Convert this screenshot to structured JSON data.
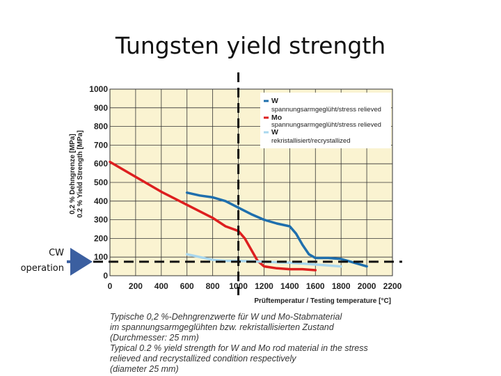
{
  "slide_title": "Tungsten yield strength",
  "annotation": {
    "line1": "CW",
    "line2": "operation"
  },
  "colors": {
    "w_stress_relieved": "#1f6fad",
    "mo_stress_relieved": "#dd1f1f",
    "w_recrystallized": "#a9d7ee",
    "plot_bg": "#faf3d1",
    "grid": "#333333"
  },
  "chart_data": {
    "type": "line",
    "title": "Tungsten yield strength",
    "xlabel": "Prüftemperatur / Testing temperature [°C]",
    "ylabel_de": "0,2 % Dehngrenze [MPa]",
    "ylabel_en": "0.2 % Yield Strength [MPa]",
    "xlim": [
      0,
      2200
    ],
    "ylim": [
      0,
      1000
    ],
    "x_ticks": [
      0,
      200,
      400,
      600,
      800,
      1000,
      1200,
      1400,
      1600,
      1800,
      2000,
      2200
    ],
    "y_ticks": [
      0,
      100,
      200,
      300,
      400,
      500,
      600,
      700,
      800,
      900,
      1000
    ],
    "grid": true,
    "legend_position": "top-right",
    "legend": [
      {
        "name": "W",
        "desc": "spannungsarmgeglüht/stress relieved"
      },
      {
        "name": "Mo",
        "desc": "spannungsarmgeglüht/stress relieved"
      },
      {
        "name": "W",
        "desc": "rekristallisiert/recrystallized"
      }
    ],
    "series": [
      {
        "name": "W spannungsarmgeglüht/stress relieved",
        "x": [
          600,
          700,
          800,
          900,
          1000,
          1100,
          1200,
          1300,
          1400,
          1450,
          1500,
          1550,
          1600,
          1700,
          1800,
          1900,
          2000
        ],
        "y": [
          445,
          430,
          420,
          400,
          365,
          330,
          300,
          280,
          265,
          225,
          165,
          115,
          95,
          95,
          90,
          70,
          50
        ]
      },
      {
        "name": "Mo spannungsarmgeglüht/stress relieved",
        "x": [
          0,
          200,
          400,
          600,
          800,
          900,
          1000,
          1050,
          1100,
          1150,
          1200,
          1300,
          1400,
          1500,
          1600
        ],
        "y": [
          610,
          530,
          450,
          380,
          310,
          265,
          240,
          200,
          140,
          80,
          50,
          40,
          35,
          35,
          30
        ]
      },
      {
        "name": "W rekristallisiert/recrystallized",
        "x": [
          600,
          700,
          800,
          900,
          1000,
          1200,
          1400,
          1600,
          1800
        ],
        "y": [
          115,
          100,
          85,
          80,
          80,
          75,
          70,
          60,
          50
        ]
      }
    ],
    "reference_lines": {
      "vertical_x": 1000,
      "horizontal_y": 75
    },
    "caption": [
      "Typische 0,2 %-Dehngrenzwerte für W und Mo-Stabmaterial",
      "im spannungsarmgeglühten bzw. rekristallisierten Zustand",
      "(Durchmesser: 25 mm)",
      "Typical 0.2 % yield strength for W and Mo rod material in the stress",
      "relieved and recrystallized condition respectively",
      "(diameter 25 mm)"
    ]
  }
}
